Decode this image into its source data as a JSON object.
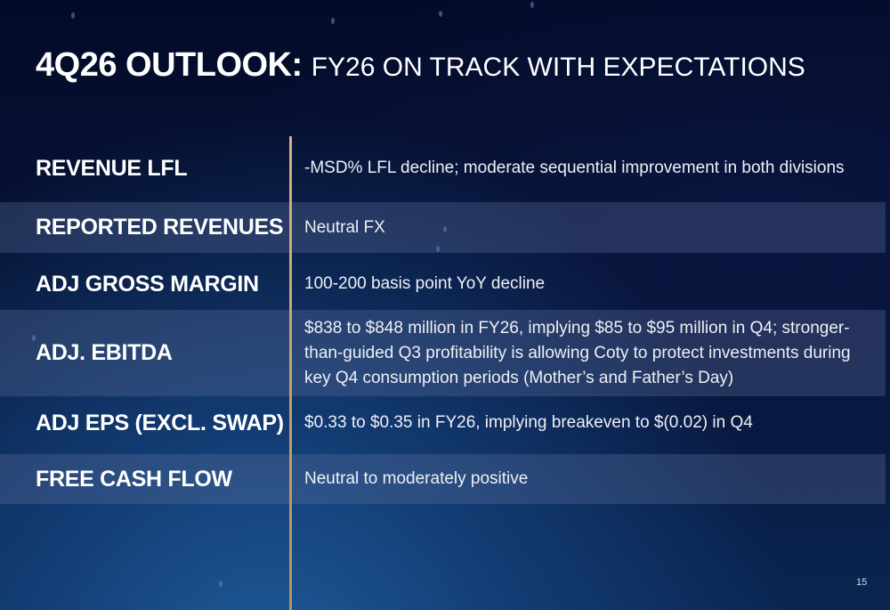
{
  "slide": {
    "title_bold": "4Q26 OUTLOOK:",
    "title_light": "FY26 ON TRACK WITH EXPECTATIONS",
    "page_number": "15"
  },
  "rows": [
    {
      "label": "REVENUE LFL",
      "value": "-MSD% LFL decline; moderate sequential improvement in both divisions"
    },
    {
      "label": "REPORTED REVENUES",
      "value": "Neutral FX"
    },
    {
      "label": "ADJ GROSS MARGIN",
      "value": "100-200 basis point YoY decline"
    },
    {
      "label": "ADJ. EBITDA",
      "value": "$838 to $848 million in FY26, implying $85 to $95 million in Q4; stronger-than-guided Q3 profitability is allowing Coty to protect investments during key Q4 consumption periods (Mother’s and Father’s Day)"
    },
    {
      "label": "ADJ EPS (EXCL. SWAP)",
      "value": "$0.33 to $0.35 in FY26, implying breakeven to $(0.02) in Q4"
    },
    {
      "label": "FREE CASH FLOW",
      "value": "Neutral to moderately positive"
    }
  ],
  "colors": {
    "background": "#061233",
    "row_shade": "#3a4b72",
    "divider": "#c9a76b",
    "text": "#ffffff"
  }
}
